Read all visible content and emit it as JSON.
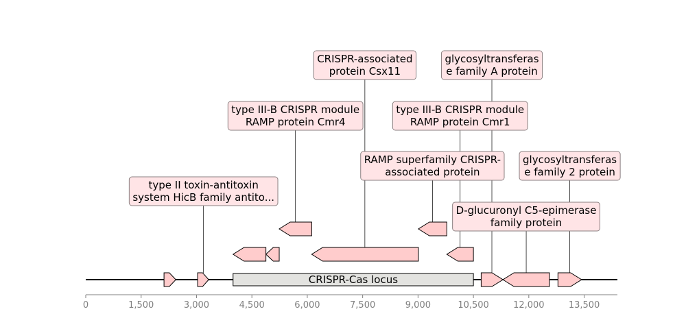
{
  "colors": {
    "gene_fill": "#ffcccc",
    "locus_fill": "#e3e3e0",
    "label_bg": "#ffe4e6",
    "label_border": "#8a7f80",
    "tick_color": "#808080"
  },
  "axis": {
    "min": 0,
    "max": 14400,
    "ticks": [
      {
        "value": 0,
        "label": "0"
      },
      {
        "value": 1500,
        "label": "1,500"
      },
      {
        "value": 3000,
        "label": "3,000"
      },
      {
        "value": 4500,
        "label": "4,500"
      },
      {
        "value": 6000,
        "label": "6,000"
      },
      {
        "value": 7500,
        "label": "7,500"
      },
      {
        "value": 9000,
        "label": "9,000"
      },
      {
        "value": 10500,
        "label": "10,500"
      },
      {
        "value": 12000,
        "label": "12,000"
      },
      {
        "value": 13500,
        "label": "13,500"
      }
    ]
  },
  "locus": {
    "start": 3990,
    "end": 10500,
    "label": "CRISPR-Cas locus"
  },
  "features": [
    {
      "id": "f1",
      "start": 2120,
      "end": 2440,
      "strand": 1,
      "level": 0
    },
    {
      "id": "f2",
      "start": 3030,
      "end": 3330,
      "strand": 1,
      "level": 0
    },
    {
      "id": "f3",
      "start": 3990,
      "end": 4880,
      "strand": -1,
      "level": 1
    },
    {
      "id": "f4",
      "start": 4880,
      "end": 5240,
      "strand": -1,
      "level": 1
    },
    {
      "id": "f5",
      "start": 5240,
      "end": 6120,
      "strand": -1,
      "level": 2
    },
    {
      "id": "f6",
      "start": 6120,
      "end": 9010,
      "strand": -1,
      "level": 1
    },
    {
      "id": "f7",
      "start": 9010,
      "end": 9780,
      "strand": -1,
      "level": 2
    },
    {
      "id": "f8",
      "start": 9780,
      "end": 10500,
      "strand": -1,
      "level": 1
    },
    {
      "id": "f9",
      "start": 10710,
      "end": 11300,
      "strand": 1,
      "level": 0
    },
    {
      "id": "f10",
      "start": 11300,
      "end": 12560,
      "strand": -1,
      "level": 0
    },
    {
      "id": "f11",
      "start": 12790,
      "end": 13430,
      "strand": 1,
      "level": 0
    }
  ],
  "annotations": [
    {
      "lines": [
        "type II toxin-antitoxin",
        "system HicB family antito..."
      ],
      "anchor": 3190,
      "row": 4,
      "feature_level": 0
    },
    {
      "lines": [
        "type III-B CRISPR module",
        "RAMP protein Cmr4"
      ],
      "anchor": 5680,
      "row": 2,
      "feature_level": 2
    },
    {
      "lines": [
        "CRISPR-associated",
        "protein Csx11"
      ],
      "anchor": 7560,
      "row": 1,
      "feature_level": 1
    },
    {
      "lines": [
        "RAMP superfamily CRISPR-",
        "associated protein"
      ],
      "anchor": 9390,
      "row": 3,
      "feature_level": 2
    },
    {
      "lines": [
        "type III-B CRISPR module",
        "RAMP protein Cmr1"
      ],
      "anchor": 10140,
      "row": 2,
      "feature_level": 1
    },
    {
      "lines": [
        "glycosyltransferas",
        "e family A protein"
      ],
      "anchor": 11000,
      "row": 1,
      "feature_level": 0
    },
    {
      "lines": [
        "D-glucuronyl C5-epimerase",
        "family protein"
      ],
      "anchor": 11930,
      "row": 5,
      "feature_level": 0
    },
    {
      "lines": [
        "glycosyltransferas",
        "e family 2 protein"
      ],
      "anchor": 13110,
      "row": 3,
      "feature_level": 0
    }
  ]
}
